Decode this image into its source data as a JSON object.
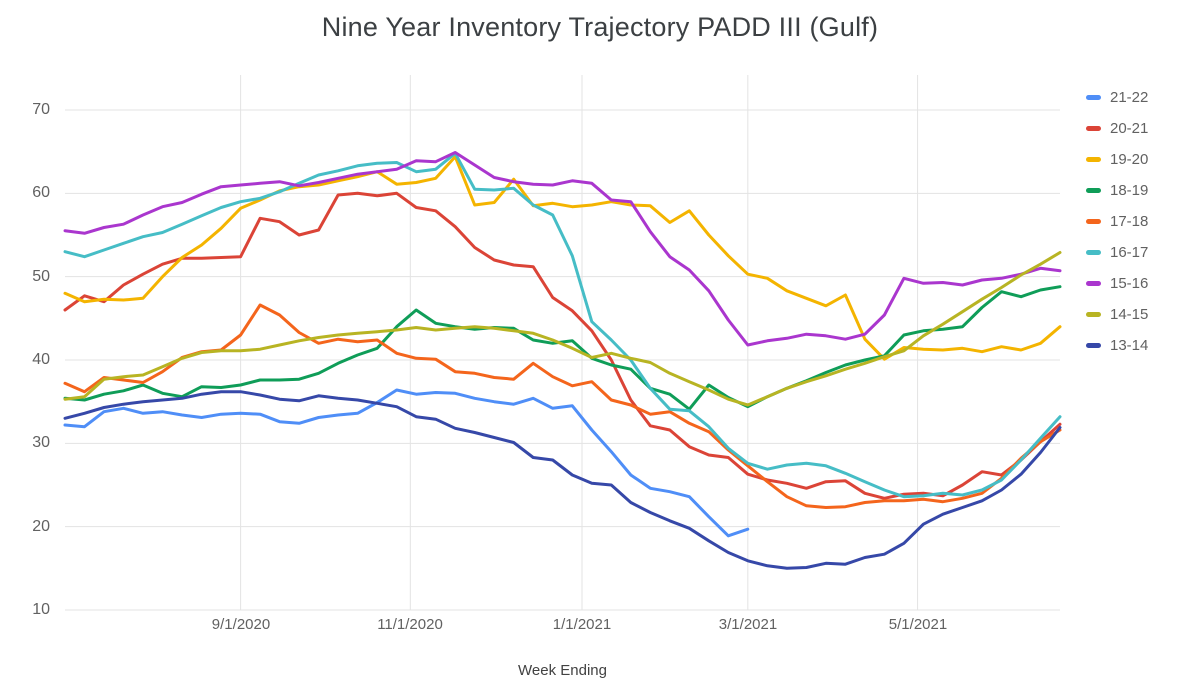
{
  "title": "Nine Year Inventory Trajectory PADD III (Gulf)",
  "chart_data": {
    "type": "line",
    "title": "Nine Year Inventory Trajectory PADD III (Gulf)",
    "xlabel": "Week Ending",
    "ylabel": "",
    "ylim": [
      10,
      70
    ],
    "y_ticks": [
      10,
      20,
      30,
      40,
      50,
      60,
      70
    ],
    "x_tick_labels": [
      "9/1/2020",
      "11/1/2020",
      "1/1/2021",
      "3/1/2021",
      "5/1/2021"
    ],
    "x_tick_week_index": [
      9,
      17.7,
      26.5,
      35,
      43.7
    ],
    "weeks_total": 52,
    "grid": true,
    "legend_position": "right",
    "grid_color": "#e3e3e3",
    "series": [
      {
        "name": "21-22",
        "color": "#4f8ef7",
        "values": [
          32.2,
          32.0,
          33.8,
          34.2,
          33.6,
          33.8,
          33.4,
          33.1,
          33.5,
          33.6,
          33.5,
          32.6,
          32.4,
          33.1,
          33.4,
          33.6,
          34.9,
          36.4,
          35.9,
          36.1,
          36.0,
          35.4,
          35.0,
          34.7,
          35.4,
          34.2,
          34.5,
          31.6,
          29.0,
          26.2,
          24.6,
          24.2,
          23.6,
          21.2,
          18.9,
          19.7
        ]
      },
      {
        "name": "20-21",
        "color": "#db4437",
        "values": [
          46.0,
          47.7,
          47.0,
          49.0,
          50.3,
          51.5,
          52.2,
          52.2,
          52.3,
          52.4,
          57.0,
          56.6,
          55.0,
          55.6,
          59.8,
          60.0,
          59.7,
          60.0,
          58.3,
          57.9,
          56.0,
          53.5,
          52.0,
          51.4,
          51.2,
          47.5,
          45.9,
          43.5,
          40.0,
          35.2,
          32.1,
          31.6,
          29.6,
          28.6,
          28.3,
          26.3,
          25.6,
          25.2,
          24.6,
          25.4,
          25.5,
          24.0,
          23.4,
          23.9,
          24.0,
          23.7,
          25.0,
          26.6,
          26.2,
          28.0,
          30.2,
          32.3
        ]
      },
      {
        "name": "19-20",
        "color": "#f4b400",
        "values": [
          48.0,
          47.0,
          47.3,
          47.2,
          47.4,
          50.0,
          52.3,
          53.8,
          55.8,
          58.2,
          59.2,
          60.3,
          60.8,
          61.0,
          61.5,
          62.0,
          62.6,
          61.1,
          61.3,
          61.8,
          64.4,
          58.6,
          58.9,
          61.7,
          58.5,
          58.8,
          58.4,
          58.6,
          59.0,
          58.6,
          58.5,
          56.5,
          57.9,
          55.0,
          52.5,
          50.3,
          49.8,
          48.3,
          47.4,
          46.5,
          47.8,
          42.5,
          40.1,
          41.5,
          41.3,
          41.2,
          41.4,
          41.0,
          41.6,
          41.2,
          42.0,
          44.0
        ]
      },
      {
        "name": "18-19",
        "color": "#0f9d58",
        "values": [
          35.4,
          35.2,
          35.9,
          36.3,
          37.0,
          36.0,
          35.6,
          36.8,
          36.7,
          37.0,
          37.6,
          37.6,
          37.7,
          38.4,
          39.6,
          40.6,
          41.4,
          44.0,
          46.0,
          44.4,
          44.0,
          43.7,
          43.9,
          43.8,
          42.4,
          42.0,
          42.3,
          40.2,
          39.4,
          38.9,
          36.6,
          35.9,
          34.1,
          37.0,
          35.5,
          34.4,
          35.6,
          36.6,
          37.5,
          38.5,
          39.4,
          40.0,
          40.5,
          43.0,
          43.5,
          43.7,
          44.0,
          46.3,
          48.2,
          47.6,
          48.4,
          48.8
        ]
      },
      {
        "name": "17-18",
        "color": "#f4651c",
        "values": [
          37.2,
          36.2,
          37.9,
          37.6,
          37.3,
          38.6,
          40.3,
          41.0,
          41.2,
          43.0,
          46.6,
          45.4,
          43.3,
          42.0,
          42.5,
          42.2,
          42.4,
          40.8,
          40.2,
          40.1,
          38.6,
          38.4,
          37.9,
          37.7,
          39.6,
          38.0,
          36.9,
          37.4,
          35.2,
          34.6,
          33.5,
          33.8,
          32.4,
          31.4,
          29.2,
          27.3,
          25.4,
          23.6,
          22.5,
          22.3,
          22.4,
          22.9,
          23.1,
          23.1,
          23.3,
          23.0,
          23.4,
          24.0,
          25.8,
          28.2,
          30.2,
          31.6
        ]
      },
      {
        "name": "16-17",
        "color": "#46bdc6",
        "values": [
          53.0,
          52.4,
          53.2,
          54.0,
          54.8,
          55.3,
          56.3,
          57.3,
          58.3,
          59.0,
          59.4,
          60.2,
          61.2,
          62.2,
          62.7,
          63.3,
          63.6,
          63.7,
          62.6,
          62.9,
          64.8,
          60.5,
          60.4,
          60.6,
          58.6,
          57.4,
          52.5,
          44.6,
          42.4,
          40.0,
          36.6,
          34.1,
          33.9,
          32.0,
          29.4,
          27.6,
          26.9,
          27.4,
          27.6,
          27.3,
          26.4,
          25.4,
          24.4,
          23.6,
          23.7,
          24.0,
          23.8,
          24.4,
          25.6,
          28.0,
          30.6,
          33.2
        ]
      },
      {
        "name": "15-16",
        "color": "#aa36ce",
        "values": [
          55.5,
          55.2,
          55.9,
          56.3,
          57.4,
          58.4,
          58.9,
          59.9,
          60.8,
          61.0,
          61.2,
          61.4,
          60.9,
          61.3,
          61.8,
          62.3,
          62.6,
          62.9,
          63.9,
          63.8,
          64.9,
          63.4,
          61.9,
          61.4,
          61.1,
          61.0,
          61.5,
          61.2,
          59.2,
          59.0,
          55.4,
          52.4,
          50.8,
          48.3,
          44.8,
          41.8,
          42.3,
          42.6,
          43.1,
          42.9,
          42.5,
          43.1,
          45.4,
          49.8,
          49.2,
          49.3,
          49.0,
          49.6,
          49.8,
          50.3,
          51.0,
          50.7
        ]
      },
      {
        "name": "14-15",
        "color": "#b8b423",
        "values": [
          35.3,
          35.6,
          37.7,
          38.0,
          38.2,
          39.2,
          40.2,
          40.9,
          41.1,
          41.1,
          41.3,
          41.8,
          42.3,
          42.7,
          43.0,
          43.2,
          43.4,
          43.6,
          43.9,
          43.6,
          43.8,
          44.0,
          43.8,
          43.5,
          43.2,
          42.4,
          41.4,
          40.3,
          40.8,
          40.2,
          39.7,
          38.4,
          37.4,
          36.4,
          35.3,
          34.6,
          35.6,
          36.6,
          37.4,
          38.1,
          38.9,
          39.6,
          40.4,
          41.1,
          42.9,
          44.3,
          45.8,
          47.3,
          48.7,
          50.2,
          51.5,
          52.9
        ]
      },
      {
        "name": "13-14",
        "color": "#3648a8",
        "values": [
          33.0,
          33.6,
          34.3,
          34.7,
          35.0,
          35.2,
          35.4,
          35.9,
          36.2,
          36.2,
          35.8,
          35.3,
          35.1,
          35.7,
          35.4,
          35.2,
          34.8,
          34.4,
          33.2,
          32.9,
          31.8,
          31.3,
          30.7,
          30.1,
          28.3,
          28.0,
          26.2,
          25.2,
          25.0,
          22.9,
          21.7,
          20.7,
          19.8,
          18.3,
          16.9,
          15.9,
          15.3,
          15.0,
          15.1,
          15.6,
          15.5,
          16.3,
          16.7,
          18.0,
          20.3,
          21.5,
          22.3,
          23.1,
          24.4,
          26.3,
          28.9,
          31.9
        ]
      }
    ]
  }
}
